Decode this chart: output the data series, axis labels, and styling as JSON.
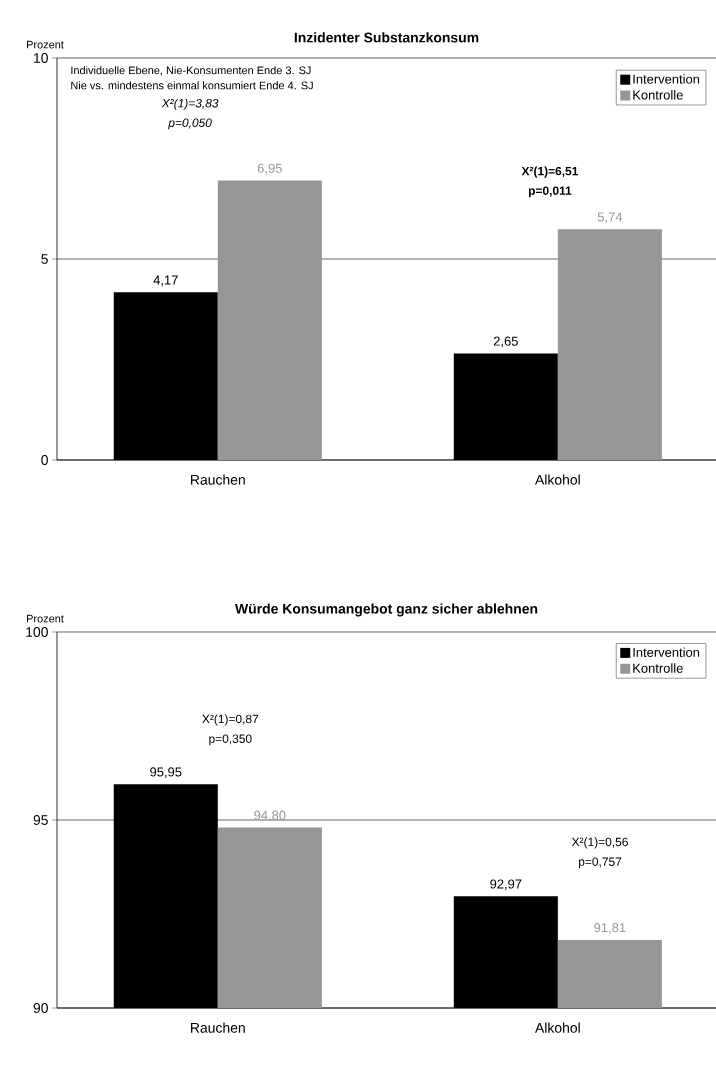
{
  "chart_data": [
    {
      "type": "bar",
      "title": "Inzidenter Substanzkonsum",
      "ylabel": "Prozent",
      "categories": [
        "Rauchen",
        "Alkohol"
      ],
      "series": [
        {
          "name": "Intervention",
          "color": "#000000",
          "values": [
            4.17,
            2.65
          ],
          "value_labels": [
            "4,17",
            "2,65"
          ]
        },
        {
          "name": "Kontrolle",
          "color": "#969696",
          "values": [
            6.95,
            5.74
          ],
          "value_labels": [
            "6,95",
            "5,74"
          ]
        }
      ],
      "ylim": [
        0,
        10
      ],
      "yticks": [
        0,
        5,
        10
      ],
      "grid": "y",
      "legend": "top right",
      "annotations": [
        "Individuelle Ebene, Nie-Konsumenten Ende 3. SJ",
        "Nie vs. mindestens einmal konsumiert Ende 4. SJ",
        "X²(1)=3,83",
        "p=0,050",
        "X²(1)=6,51",
        "p=0,011"
      ]
    },
    {
      "type": "bar",
      "title": "Würde Konsumangebot ganz sicher ablehnen",
      "ylabel": "Prozent",
      "categories": [
        "Rauchen",
        "Alkohol"
      ],
      "series": [
        {
          "name": "Intervention",
          "color": "#000000",
          "values": [
            95.95,
            92.97
          ],
          "value_labels": [
            "95,95",
            "92,97"
          ]
        },
        {
          "name": "Kontrolle",
          "color": "#969696",
          "values": [
            94.8,
            91.81
          ],
          "value_labels": [
            "94,80",
            "91,81"
          ]
        }
      ],
      "ylim": [
        90,
        100
      ],
      "yticks": [
        90,
        95,
        100
      ],
      "grid": "y",
      "legend": "top right",
      "annotations": [
        "X²(1)=0,87",
        "p=0,350",
        "X²(1)=0,56",
        "p=0,757"
      ]
    }
  ]
}
